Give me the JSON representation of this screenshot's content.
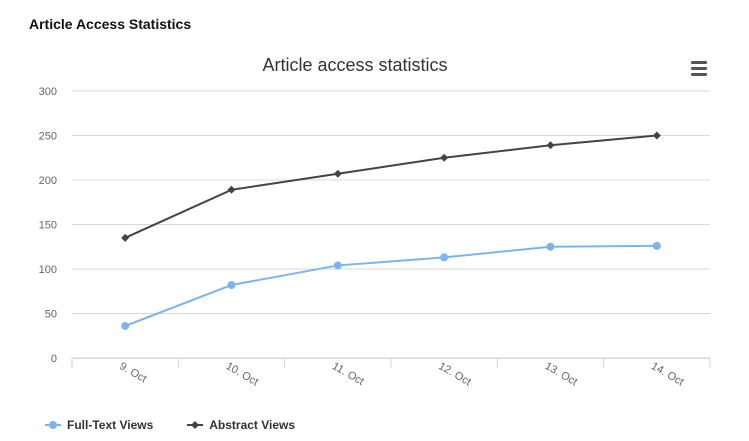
{
  "page": {
    "heading": "Article Access Statistics"
  },
  "chart_data": {
    "type": "line",
    "title": "Article access statistics",
    "xlabel": "",
    "ylabel": "",
    "categories": [
      "9. Oct",
      "10. Oct",
      "11. Oct",
      "12. Oct",
      "13. Oct",
      "14. Oct"
    ],
    "ylim": [
      0,
      300
    ],
    "yticks": [
      "0",
      "50",
      "100",
      "150",
      "200",
      "250",
      "300"
    ],
    "grid": true,
    "legend_position": "bottom-left",
    "series": [
      {
        "name": "Full-Text Views",
        "values": [
          36,
          82,
          104,
          113,
          125,
          126
        ],
        "color": "#7cb5ec",
        "marker": "circle"
      },
      {
        "name": "Abstract Views",
        "values": [
          135,
          189,
          207,
          225,
          239,
          250
        ],
        "color": "#434348",
        "marker": "diamond"
      }
    ]
  },
  "menu": {
    "icon": "hamburger-menu-icon"
  }
}
